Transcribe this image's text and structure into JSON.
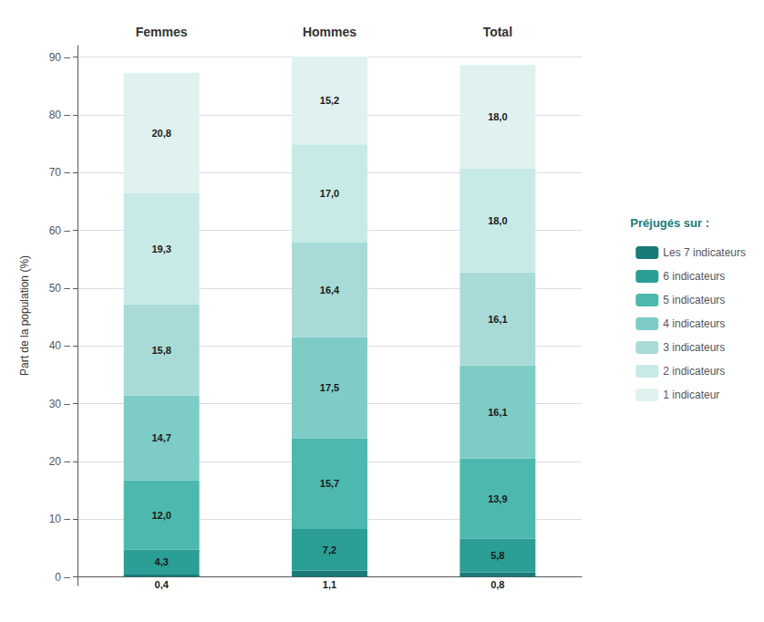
{
  "chart_data": {
    "type": "bar",
    "stacked": true,
    "categories": [
      "Femmes",
      "Hommes",
      "Total"
    ],
    "ylabel": "Part de la population (%)",
    "ylim": [
      -1.5,
      92
    ],
    "yticks": [
      {
        "value": 0,
        "label": "0 –"
      },
      {
        "value": 10,
        "label": "10 –"
      },
      {
        "value": 20,
        "label": "20 –"
      },
      {
        "value": 30,
        "label": "30 –"
      },
      {
        "value": 40,
        "label": "40 –"
      },
      {
        "value": 50,
        "label": "50 –"
      },
      {
        "value": 60,
        "label": "60 –"
      },
      {
        "value": 70,
        "label": "70 –"
      },
      {
        "value": 80,
        "label": "80 –"
      },
      {
        "value": 90,
        "label": "90 –"
      }
    ],
    "grid": true,
    "legend": "right",
    "legend_title": "Préjugés sur :",
    "data_labels": true,
    "series": [
      {
        "name": "Les 7 indicateurs",
        "color": "#1a7a78",
        "values": [
          0.4,
          1.1,
          0.8
        ],
        "value_labels": [
          "0,4",
          "1,1",
          "0,8"
        ]
      },
      {
        "name": "6 indicateurs",
        "color": "#2b9e96",
        "values": [
          4.3,
          7.2,
          5.8
        ],
        "value_labels": [
          "4,3",
          "7,2",
          "5,8"
        ]
      },
      {
        "name": "5 indicateurs",
        "color": "#4db8ae",
        "values": [
          12.0,
          15.7,
          13.9
        ],
        "value_labels": [
          "12,0",
          "15,7",
          "13,9"
        ]
      },
      {
        "name": "4 indicateurs",
        "color": "#7dccc6",
        "values": [
          14.7,
          17.5,
          16.1
        ],
        "value_labels": [
          "14,7",
          "17,5",
          "16,1"
        ]
      },
      {
        "name": "3 indicateurs",
        "color": "#a8dbd7",
        "values": [
          15.8,
          16.4,
          16.1
        ],
        "value_labels": [
          "15,8",
          "16,4",
          "16,1"
        ]
      },
      {
        "name": "2 indicateurs",
        "color": "#c8eae7",
        "values": [
          19.3,
          17.0,
          18.0
        ],
        "value_labels": [
          "19,3",
          "17,0",
          "18,0"
        ]
      },
      {
        "name": "1 indicateur",
        "color": "#dff2f0",
        "values": [
          20.8,
          15.2,
          18.0
        ],
        "value_labels": [
          "20,8",
          "15,2",
          "18,0"
        ]
      }
    ]
  }
}
